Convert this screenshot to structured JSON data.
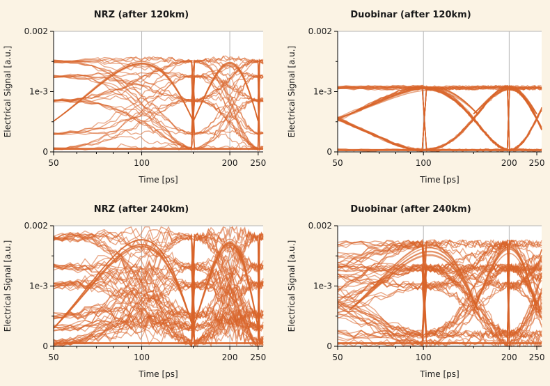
{
  "chart_data": [
    {
      "type": "line",
      "title": "NRZ (after 120km)",
      "xlabel": "Time [ps]",
      "ylabel": "Electrical Signal [a.u.]",
      "xlim": [
        50,
        260
      ],
      "ylim": [
        0,
        0.002
      ],
      "xscale": "log",
      "yscale": "linear",
      "xticks": [
        50,
        100,
        200,
        250
      ],
      "xtick_labels": [
        "50",
        "100",
        "200",
        "250"
      ],
      "yticks": [
        0,
        0.001,
        0.002
      ],
      "ytick_labels": [
        "0",
        "1e-3",
        "0.002"
      ],
      "grid": true,
      "series_color": "#d9652a",
      "levels": [
        5e-05,
        0.0003,
        0.00085
      ],
      "upper_levels": [
        0.0015,
        0.00125
      ],
      "crossings_ps": [
        50,
        150,
        250
      ],
      "note_shape": "eye diagram, overlapping bit traces"
    },
    {
      "type": "line",
      "title": "Duobinar (after 120km)",
      "xlabel": "Time [ps]",
      "ylabel": "Electrical Signal [a.u.]",
      "xlim": [
        50,
        260
      ],
      "ylim": [
        0,
        0.002
      ],
      "xscale": "log",
      "yscale": "linear",
      "xticks": [
        50,
        100,
        200,
        250
      ],
      "xtick_labels": [
        "50",
        "100",
        "200",
        "250"
      ],
      "yticks": [
        0,
        0.001,
        0.002
      ],
      "ytick_labels": [
        "0",
        "1e-3",
        "0.002"
      ],
      "grid": true,
      "series_color": "#d9652a",
      "levels": [
        3e-05,
        0.00105
      ],
      "upper_levels": [
        0.00108
      ],
      "crossings_ps": [
        100,
        200
      ]
    },
    {
      "type": "line",
      "title": "NRZ (after 240km)",
      "xlabel": "Time [ps]",
      "ylabel": "Electrical Signal [a.u.]",
      "xlim": [
        50,
        260
      ],
      "ylim": [
        0,
        0.002
      ],
      "xscale": "log",
      "yscale": "linear",
      "xticks": [
        50,
        100,
        200,
        250
      ],
      "xtick_labels": [
        "50",
        "100",
        "200",
        "250"
      ],
      "yticks": [
        0,
        0.001,
        0.002
      ],
      "ytick_labels": [
        "0",
        "1e-3",
        "0.002"
      ],
      "grid": true,
      "series_color": "#d9652a",
      "levels": [
        5e-05,
        0.0003,
        0.0005
      ],
      "upper_levels": [
        0.0018,
        0.0013,
        0.001
      ],
      "crossings_ps": [
        50,
        150,
        250
      ]
    },
    {
      "type": "line",
      "title": "Duobinar (after 240km)",
      "xlabel": "Time [ps]",
      "ylabel": "Electrical Signal [a.u.]",
      "xlim": [
        50,
        260
      ],
      "ylim": [
        0,
        0.002
      ],
      "xscale": "log",
      "yscale": "linear",
      "xticks": [
        50,
        100,
        200,
        250
      ],
      "xtick_labels": [
        "50",
        "100",
        "200",
        "250"
      ],
      "yticks": [
        0,
        0.001,
        0.002
      ],
      "ytick_labels": [
        "0",
        "1e-3",
        "0.002"
      ],
      "grid": true,
      "series_color": "#d9652a",
      "levels": [
        5e-05,
        0.0002,
        0.001
      ],
      "upper_levels": [
        0.0017,
        0.0013
      ],
      "crossings_ps": [
        100,
        200
      ]
    }
  ]
}
